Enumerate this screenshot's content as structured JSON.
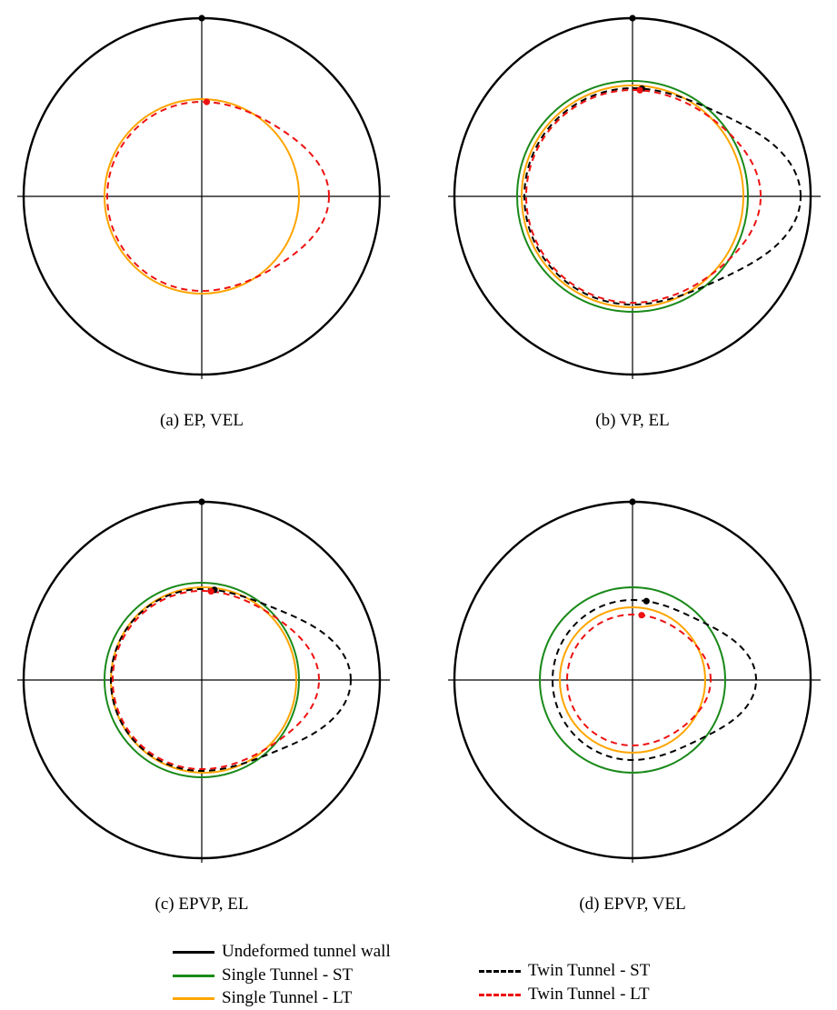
{
  "colors": {
    "wall": "#000000",
    "single_st": "#1a8a1a",
    "single_lt": "#ffa500",
    "twin_st": "#000000",
    "twin_lt": "#ee1111"
  },
  "panels": [
    {
      "id": "a",
      "caption": "(a) EP, VEL",
      "curves": [
        {
          "series": "single_lt",
          "style": "solid",
          "shape": "circle",
          "r": 107,
          "dx": 0,
          "dy": 0
        },
        {
          "series": "twin_lt",
          "style": "dashed",
          "shape": "kidney",
          "r": 104,
          "dx": 0,
          "dy": 0,
          "kidney": [
            18,
            18,
            0
          ]
        }
      ],
      "markers": [
        {
          "series": "twin_lt",
          "angle_deg": 87
        }
      ]
    },
    {
      "id": "b",
      "caption": "(b) VP, EL",
      "curves": [
        {
          "series": "single_st",
          "style": "solid",
          "shape": "circle",
          "r": 127,
          "dx": 0,
          "dy": 0
        },
        {
          "series": "single_lt",
          "style": "solid",
          "shape": "circle",
          "r": 122,
          "dx": 0,
          "dy": 0
        },
        {
          "series": "twin_st",
          "style": "dashed",
          "shape": "kidney",
          "r": 119,
          "dx": 0,
          "dy": 0,
          "kidney": [
            28,
            38,
            0
          ]
        },
        {
          "series": "twin_lt",
          "style": "dashed",
          "shape": "kidney",
          "r": 117,
          "dx": 0,
          "dy": 0,
          "kidney": [
            12,
            12,
            0
          ]
        }
      ],
      "markers": [
        {
          "series": "twin_st",
          "angle_deg": 85
        },
        {
          "series": "twin_lt",
          "angle_deg": 86
        }
      ]
    },
    {
      "id": "c",
      "caption": "(c) EPVP, EL",
      "curves": [
        {
          "series": "single_st",
          "style": "solid",
          "shape": "circle",
          "r": 107,
          "dx": 0,
          "dy": 0
        },
        {
          "series": "single_lt",
          "style": "solid",
          "shape": "circle",
          "r": 102,
          "dx": 2,
          "dy": 0
        },
        {
          "series": "twin_st",
          "style": "dashed",
          "shape": "kidney",
          "r": 100,
          "dx": 0,
          "dy": 0,
          "kidney": [
            28,
            36,
            0
          ]
        },
        {
          "series": "twin_lt",
          "style": "dashed",
          "shape": "kidney",
          "r": 98,
          "dx": 0,
          "dy": 0,
          "kidney": [
            15,
            16,
            0
          ]
        }
      ],
      "markers": [
        {
          "series": "twin_st",
          "angle_deg": 82
        },
        {
          "series": "twin_lt",
          "angle_deg": 84
        }
      ]
    },
    {
      "id": "d",
      "caption": "(d) EPVP, VEL",
      "curves": [
        {
          "series": "single_st",
          "style": "solid",
          "shape": "circle",
          "r": 102,
          "dx": 0,
          "dy": 0
        },
        {
          "series": "single_lt",
          "style": "solid",
          "shape": "circle",
          "r": 80,
          "dx": 0,
          "dy": 0
        },
        {
          "series": "twin_st",
          "style": "dashed",
          "shape": "kidney",
          "r": 88,
          "dx": 0,
          "dy": 0,
          "kidney": [
            18,
            30,
            0
          ]
        },
        {
          "series": "twin_lt",
          "style": "dashed",
          "shape": "kidney",
          "r": 72,
          "dx": 0,
          "dy": 0,
          "kidney": [
            8,
            6,
            0
          ]
        }
      ],
      "markers": [
        {
          "series": "twin_st",
          "angle_deg": 80
        },
        {
          "series": "twin_lt",
          "angle_deg": 82
        }
      ]
    }
  ],
  "legend": [
    {
      "series": "wall",
      "label": "Undeformed tunnel wall",
      "style": "solid"
    },
    {
      "series": "single_st",
      "label": "Single Tunnel - ST",
      "style": "solid"
    },
    {
      "series": "single_lt",
      "label": "Single Tunnel - LT",
      "style": "solid"
    },
    {
      "series": "twin_st",
      "label": "Twin Tunnel - ST",
      "style": "dashed"
    },
    {
      "series": "twin_lt",
      "label": "Twin Tunnel - LT",
      "style": "dashed"
    }
  ]
}
